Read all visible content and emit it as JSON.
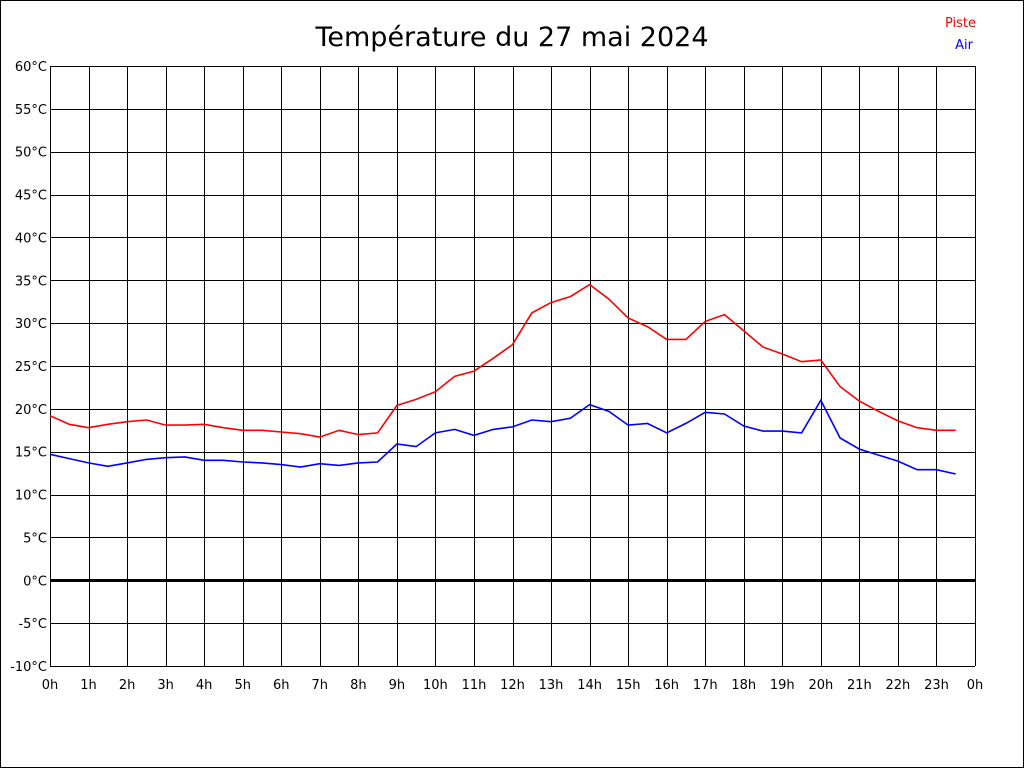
{
  "chart_data": {
    "type": "line",
    "title": "Température du 27 mai 2024",
    "xlabel": "",
    "ylabel": "",
    "x_ticks": [
      "0h",
      "1h",
      "2h",
      "3h",
      "4h",
      "5h",
      "6h",
      "7h",
      "8h",
      "9h",
      "10h",
      "11h",
      "12h",
      "13h",
      "14h",
      "15h",
      "16h",
      "17h",
      "18h",
      "19h",
      "20h",
      "21h",
      "22h",
      "23h",
      "0h"
    ],
    "y_ticks": [
      "-10°C",
      "-5°C",
      "0°C",
      "5°C",
      "10°C",
      "15°C",
      "20°C",
      "25°C",
      "30°C",
      "35°C",
      "40°C",
      "45°C",
      "50°C",
      "55°C",
      "60°C"
    ],
    "xlim": [
      0,
      24
    ],
    "ylim": [
      -10,
      60
    ],
    "grid": true,
    "legend_position": "top-right",
    "x": [
      0,
      0.5,
      1,
      1.5,
      2,
      2.5,
      3,
      3.5,
      4,
      4.5,
      5,
      5.5,
      6,
      6.5,
      7,
      7.5,
      8,
      8.5,
      9,
      9.5,
      10,
      10.5,
      11,
      11.5,
      12,
      12.5,
      13,
      13.5,
      14,
      14.5,
      15,
      15.5,
      16,
      16.5,
      17,
      17.5,
      18,
      18.5,
      19,
      19.5,
      20,
      20.5,
      21,
      21.5,
      22,
      22.5,
      23,
      23.5
    ],
    "series": [
      {
        "name": "Piste",
        "color": "#ff0000",
        "values": [
          19.2,
          18.2,
          17.8,
          18.2,
          18.5,
          18.7,
          18.1,
          18.1,
          18.2,
          17.8,
          17.5,
          17.5,
          17.3,
          17.1,
          16.7,
          17.5,
          17.0,
          17.2,
          20.4,
          21.1,
          22.0,
          23.8,
          24.4,
          25.9,
          27.5,
          31.2,
          32.4,
          33.1,
          34.5,
          32.8,
          30.6,
          29.6,
          28.1,
          28.1,
          30.2,
          31.0,
          29.1,
          27.2,
          26.4,
          25.5,
          25.7,
          22.6,
          20.9,
          19.7,
          18.6,
          17.8,
          17.5,
          17.5
        ]
      },
      {
        "name": "Air",
        "color": "#0000ff",
        "values": [
          14.7,
          14.2,
          13.7,
          13.3,
          13.7,
          14.1,
          14.3,
          14.4,
          14.0,
          14.0,
          13.8,
          13.7,
          13.5,
          13.2,
          13.6,
          13.4,
          13.7,
          13.8,
          15.9,
          15.6,
          17.2,
          17.6,
          16.9,
          17.6,
          17.9,
          18.7,
          18.5,
          18.9,
          20.5,
          19.7,
          18.1,
          18.3,
          17.2,
          18.3,
          19.6,
          19.4,
          18.0,
          17.4,
          17.4,
          17.2,
          21.0,
          16.6,
          15.3,
          14.6,
          13.9,
          12.9,
          12.9,
          12.4
        ]
      }
    ]
  }
}
